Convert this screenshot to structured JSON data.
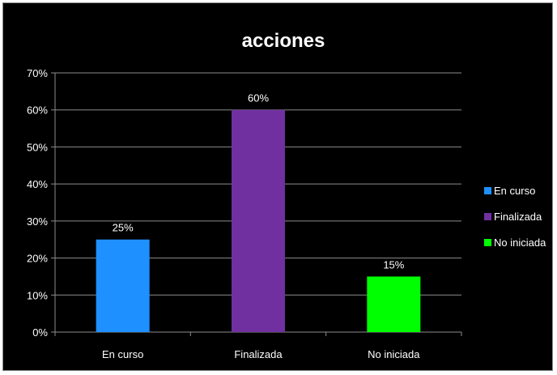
{
  "chart_data": {
    "type": "bar",
    "title": "acciones",
    "categories": [
      "En curso",
      "Finalizada",
      "No iniciada"
    ],
    "values": [
      25,
      60,
      15
    ],
    "data_labels": [
      "25%",
      "60%",
      "15%"
    ],
    "colors": [
      "#1e90ff",
      "#7030a0",
      "#00ff00"
    ],
    "ylim": [
      0,
      70
    ],
    "yticks": [
      {
        "value": 0,
        "label": "0%"
      },
      {
        "value": 10,
        "label": "10%"
      },
      {
        "value": 20,
        "label": "20%"
      },
      {
        "value": 30,
        "label": "30%"
      },
      {
        "value": 40,
        "label": "40%"
      },
      {
        "value": 50,
        "label": "50%"
      },
      {
        "value": 60,
        "label": "60%"
      },
      {
        "value": 70,
        "label": "70%"
      }
    ],
    "legend": {
      "position": "right",
      "entries": [
        "En curso",
        "Finalizada",
        "No iniciada"
      ]
    },
    "grid": true,
    "background": "#000000"
  }
}
